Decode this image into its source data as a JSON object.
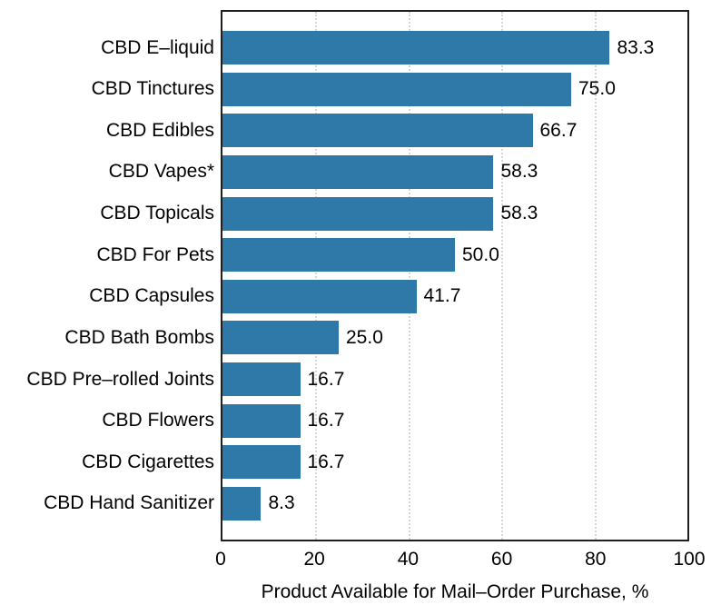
{
  "chart_data": {
    "type": "bar",
    "orientation": "horizontal",
    "title": "",
    "xlabel": "Product Available for Mail–Order Purchase, %",
    "ylabel": "",
    "categories": [
      "CBD E–liquid",
      "CBD Tinctures",
      "CBD Edibles",
      "CBD Vapes*",
      "CBD Topicals",
      "CBD For Pets",
      "CBD Capsules",
      "CBD Bath Bombs",
      "CBD Pre–rolled Joints",
      "CBD Flowers",
      "CBD Cigarettes",
      "CBD Hand Sanitizer"
    ],
    "values": [
      83.3,
      75.0,
      66.7,
      58.3,
      58.3,
      50.0,
      41.7,
      25.0,
      16.7,
      16.7,
      16.7,
      8.3
    ],
    "value_labels": [
      "83.3",
      "75.0",
      "66.7",
      "58.3",
      "58.3",
      "50.0",
      "41.7",
      "25.0",
      "16.7",
      "16.7",
      "16.7",
      "8.3"
    ],
    "xlim": [
      0,
      100
    ],
    "x_ticks": [
      "0",
      "20",
      "40",
      "60",
      "80",
      "100"
    ],
    "gridlines": [
      20,
      40,
      60,
      80
    ],
    "grid_style": "dotted",
    "legend": "none",
    "bar_color": "#2E79A8",
    "panel_border_color": "#1f1f1f",
    "grid_color": "#d7d7d7",
    "text_color": "#000000",
    "background_color": "#ffffff"
  }
}
